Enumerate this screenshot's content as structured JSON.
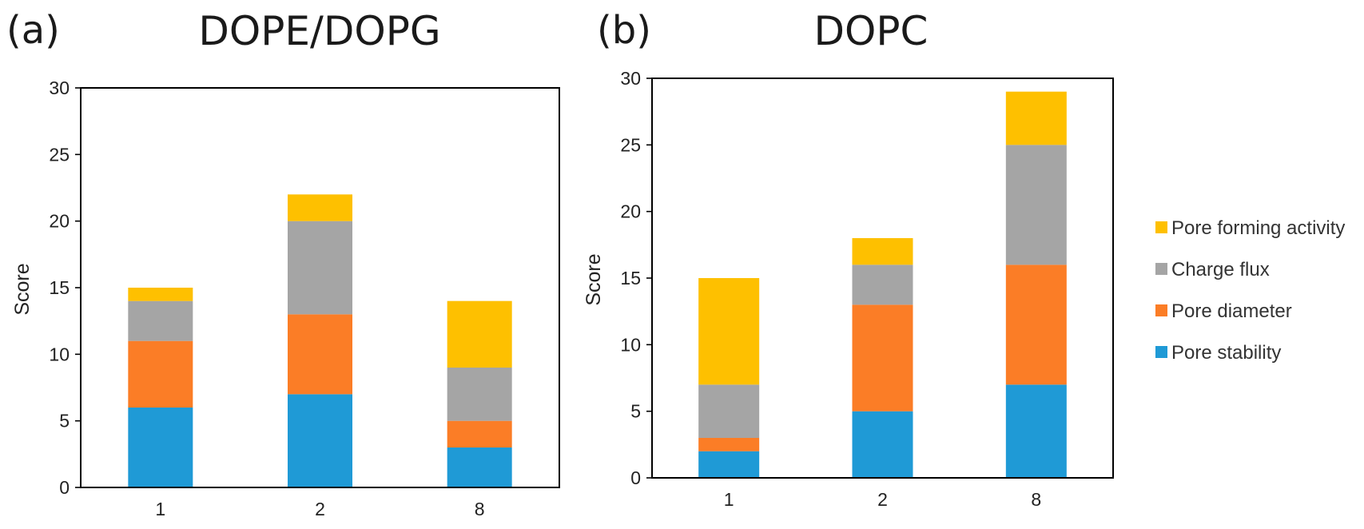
{
  "chart_data": [
    {
      "type": "bar",
      "stacked": true,
      "panel_label": "(a)",
      "title": "DOPE/DOPG",
      "xlabel": "",
      "ylabel": "Score",
      "ylim": [
        0,
        30
      ],
      "yticks": [
        0,
        5,
        10,
        15,
        20,
        25,
        30
      ],
      "categories": [
        "1",
        "2",
        "8"
      ],
      "series": [
        {
          "name": "Pore stability",
          "color": "#1f9ad6",
          "values": [
            6,
            7,
            3
          ]
        },
        {
          "name": "Pore diameter",
          "color": "#fb7d26",
          "values": [
            5,
            6,
            2
          ]
        },
        {
          "name": "Charge flux",
          "color": "#a5a5a5",
          "values": [
            3,
            7,
            4
          ]
        },
        {
          "name": "Pore forming activity",
          "color": "#fec000",
          "values": [
            1,
            2,
            5
          ]
        }
      ]
    },
    {
      "type": "bar",
      "stacked": true,
      "panel_label": "(b)",
      "title": "DOPC",
      "xlabel": "",
      "ylabel": "Score",
      "ylim": [
        0,
        30
      ],
      "yticks": [
        0,
        5,
        10,
        15,
        20,
        25,
        30
      ],
      "categories": [
        "1",
        "2",
        "8"
      ],
      "series": [
        {
          "name": "Pore stability",
          "color": "#1f9ad6",
          "values": [
            2,
            5,
            7
          ]
        },
        {
          "name": "Pore diameter",
          "color": "#fb7d26",
          "values": [
            1,
            8,
            9
          ]
        },
        {
          "name": "Charge flux",
          "color": "#a5a5a5",
          "values": [
            4,
            3,
            9
          ]
        },
        {
          "name": "Pore forming activity",
          "color": "#fec000",
          "values": [
            8,
            2,
            4
          ]
        }
      ]
    }
  ],
  "legend": {
    "placement": "right",
    "items": [
      {
        "label": "Pore forming activity",
        "color": "#fec000"
      },
      {
        "label": "Charge flux",
        "color": "#a5a5a5"
      },
      {
        "label": "Pore diameter",
        "color": "#fb7d26"
      },
      {
        "label": "Pore stability",
        "color": "#1f9ad6"
      }
    ]
  }
}
